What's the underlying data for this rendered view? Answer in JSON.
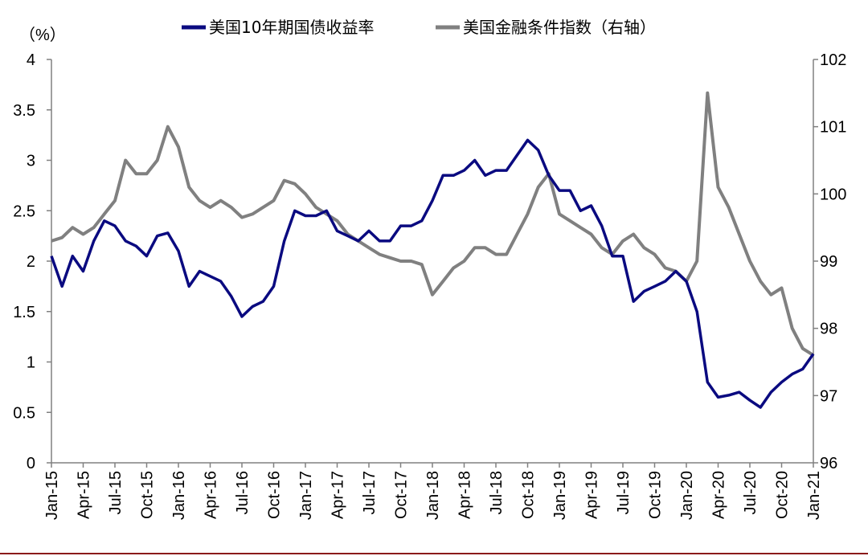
{
  "chart_data": {
    "type": "line",
    "ylabel_left": "（%）",
    "ylim_left": [
      0,
      4
    ],
    "yticks_left": [
      "0",
      "0.5",
      "1",
      "1.5",
      "2",
      "2.5",
      "3",
      "3.5",
      "4"
    ],
    "ylim_right": [
      96,
      102
    ],
    "yticks_right": [
      "96",
      "97",
      "98",
      "99",
      "100",
      "101",
      "102"
    ],
    "xlim": [
      "2015-01",
      "2021-01"
    ],
    "x_ticks": [
      "Jan-15",
      "Apr-15",
      "Jul-15",
      "Oct-15",
      "Jan-16",
      "Apr-16",
      "Jul-16",
      "Oct-16",
      "Jan-17",
      "Apr-17",
      "Jul-17",
      "Oct-17",
      "Jan-18",
      "Apr-18",
      "Jul-18",
      "Oct-18",
      "Jan-19",
      "Apr-19",
      "Jul-19",
      "Oct-19",
      "Jan-20",
      "Apr-20",
      "Jul-20",
      "Oct-20",
      "Jan-21"
    ],
    "grid": false,
    "legend_position": "top",
    "series": [
      {
        "name": "美国10年期国债收益率",
        "axis": "left",
        "color": "#0a0a80",
        "x": [
          "2015-01",
          "2015-02",
          "2015-03",
          "2015-04",
          "2015-05",
          "2015-06",
          "2015-07",
          "2015-08",
          "2015-09",
          "2015-10",
          "2015-11",
          "2015-12",
          "2016-01",
          "2016-02",
          "2016-03",
          "2016-04",
          "2016-05",
          "2016-06",
          "2016-07",
          "2016-08",
          "2016-09",
          "2016-10",
          "2016-11",
          "2016-12",
          "2017-01",
          "2017-02",
          "2017-03",
          "2017-04",
          "2017-05",
          "2017-06",
          "2017-07",
          "2017-08",
          "2017-09",
          "2017-10",
          "2017-11",
          "2017-12",
          "2018-01",
          "2018-02",
          "2018-03",
          "2018-04",
          "2018-05",
          "2018-06",
          "2018-07",
          "2018-08",
          "2018-09",
          "2018-10",
          "2018-11",
          "2018-12",
          "2019-01",
          "2019-02",
          "2019-03",
          "2019-04",
          "2019-05",
          "2019-06",
          "2019-07",
          "2019-08",
          "2019-09",
          "2019-10",
          "2019-11",
          "2019-12",
          "2020-01",
          "2020-02",
          "2020-03",
          "2020-04",
          "2020-05",
          "2020-06",
          "2020-07",
          "2020-08",
          "2020-09",
          "2020-10",
          "2020-11",
          "2020-12",
          "2021-01"
        ],
        "values": [
          2.05,
          1.75,
          2.05,
          1.9,
          2.2,
          2.4,
          2.35,
          2.2,
          2.15,
          2.05,
          2.25,
          2.28,
          2.1,
          1.75,
          1.9,
          1.85,
          1.8,
          1.65,
          1.45,
          1.55,
          1.6,
          1.75,
          2.2,
          2.5,
          2.45,
          2.45,
          2.5,
          2.3,
          2.25,
          2.2,
          2.3,
          2.2,
          2.2,
          2.35,
          2.35,
          2.4,
          2.6,
          2.85,
          2.85,
          2.9,
          3.0,
          2.85,
          2.9,
          2.9,
          3.05,
          3.2,
          3.1,
          2.85,
          2.7,
          2.7,
          2.5,
          2.55,
          2.35,
          2.05,
          2.05,
          1.6,
          1.7,
          1.75,
          1.8,
          1.9,
          1.8,
          1.5,
          0.8,
          0.65,
          0.67,
          0.7,
          0.62,
          0.55,
          0.7,
          0.8,
          0.88,
          0.93,
          1.08
        ]
      },
      {
        "name": "美国金融条件指数（右轴）",
        "axis": "right",
        "color": "#808080",
        "x": [
          "2015-01",
          "2015-02",
          "2015-03",
          "2015-04",
          "2015-05",
          "2015-06",
          "2015-07",
          "2015-08",
          "2015-09",
          "2015-10",
          "2015-11",
          "2015-12",
          "2016-01",
          "2016-02",
          "2016-03",
          "2016-04",
          "2016-05",
          "2016-06",
          "2016-07",
          "2016-08",
          "2016-09",
          "2016-10",
          "2016-11",
          "2016-12",
          "2017-01",
          "2017-02",
          "2017-03",
          "2017-04",
          "2017-05",
          "2017-06",
          "2017-07",
          "2017-08",
          "2017-09",
          "2017-10",
          "2017-11",
          "2017-12",
          "2018-01",
          "2018-02",
          "2018-03",
          "2018-04",
          "2018-05",
          "2018-06",
          "2018-07",
          "2018-08",
          "2018-09",
          "2018-10",
          "2018-11",
          "2018-12",
          "2019-01",
          "2019-02",
          "2019-03",
          "2019-04",
          "2019-05",
          "2019-06",
          "2019-07",
          "2019-08",
          "2019-09",
          "2019-10",
          "2019-11",
          "2019-12",
          "2020-01",
          "2020-02",
          "2020-03",
          "2020-04",
          "2020-05",
          "2020-06",
          "2020-07",
          "2020-08",
          "2020-09",
          "2020-10",
          "2020-11",
          "2020-12",
          "2021-01"
        ],
        "values": [
          99.3,
          99.35,
          99.5,
          99.4,
          99.5,
          99.7,
          99.9,
          100.5,
          100.3,
          100.3,
          100.5,
          101.0,
          100.7,
          100.1,
          99.9,
          99.8,
          99.9,
          99.8,
          99.65,
          99.7,
          99.8,
          99.9,
          100.2,
          100.15,
          100.0,
          99.8,
          99.7,
          99.6,
          99.4,
          99.3,
          99.2,
          99.1,
          99.05,
          99.0,
          99.0,
          98.95,
          98.5,
          98.7,
          98.9,
          99.0,
          99.2,
          99.2,
          99.1,
          99.1,
          99.4,
          99.7,
          100.1,
          100.3,
          99.7,
          99.6,
          99.5,
          99.4,
          99.2,
          99.1,
          99.3,
          99.4,
          99.2,
          99.1,
          98.9,
          98.85,
          98.7,
          99.0,
          101.5,
          100.1,
          99.8,
          99.4,
          99.0,
          98.7,
          98.5,
          98.6,
          98.0,
          97.7,
          97.6
        ]
      }
    ]
  },
  "legend": {
    "items": [
      {
        "label": "美国10年期国债收益率",
        "color": "#0a0a80"
      },
      {
        "label": "美国金融条件指数（右轴）",
        "color": "#808080"
      }
    ]
  }
}
